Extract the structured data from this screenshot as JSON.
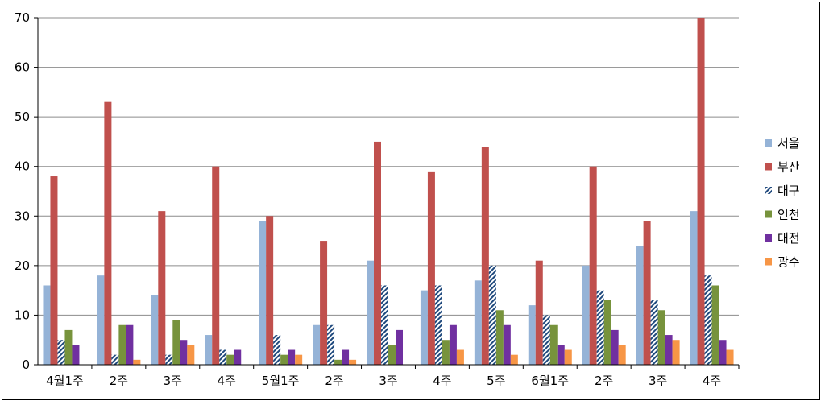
{
  "chart_data": {
    "type": "bar",
    "categories": [
      "4월1주",
      "2주",
      "3주",
      "4주",
      "5월1주",
      "2주",
      "3주",
      "4주",
      "5주",
      "6월1주",
      "2주",
      "3주",
      "4주"
    ],
    "series": [
      {
        "name": "서울",
        "color": "#95b3d7",
        "pattern": "solid",
        "values": [
          16,
          18,
          14,
          6,
          29,
          8,
          21,
          15,
          17,
          12,
          20,
          24,
          31
        ]
      },
      {
        "name": "부산",
        "color": "#c0504d",
        "pattern": "solid",
        "values": [
          38,
          53,
          31,
          40,
          30,
          25,
          45,
          39,
          44,
          21,
          40,
          29,
          70
        ]
      },
      {
        "name": "대구",
        "color": "#1f497d",
        "pattern": "diagonal-hatch",
        "values": [
          5,
          2,
          2,
          3,
          6,
          8,
          16,
          16,
          20,
          10,
          15,
          13,
          18
        ]
      },
      {
        "name": "인천",
        "color": "#77933c",
        "pattern": "solid",
        "values": [
          7,
          8,
          9,
          2,
          2,
          1,
          4,
          5,
          11,
          8,
          13,
          11,
          16
        ]
      },
      {
        "name": "대전",
        "color": "#7030a0",
        "pattern": "solid",
        "values": [
          4,
          8,
          5,
          3,
          3,
          3,
          7,
          8,
          8,
          4,
          7,
          6,
          5
        ]
      },
      {
        "name": "광수",
        "color": "#f79646",
        "pattern": "solid",
        "values": [
          0,
          1,
          4,
          0,
          2,
          1,
          0,
          3,
          2,
          3,
          4,
          5,
          3
        ]
      }
    ],
    "y_ticks": [
      "0",
      "10",
      "20",
      "30",
      "40",
      "50",
      "60",
      "70"
    ],
    "ylim": [
      0,
      70
    ],
    "grid": true,
    "legend_position": "right"
  }
}
